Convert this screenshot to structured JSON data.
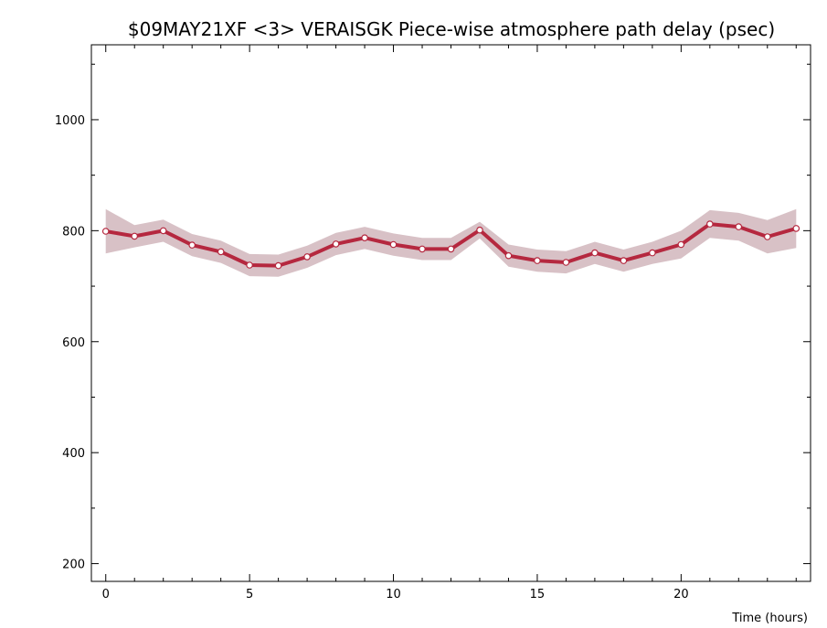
{
  "colors": {
    "line": "#b5283f",
    "band": "#d8c1c6",
    "point_fill": "#ffffff",
    "axis": "#000000"
  },
  "chart_data": {
    "type": "line",
    "title": "$09MAY21XF <3>  VERAISGK  Piece-wise atmosphere path delay (psec)",
    "xlabel": "Time (hours)",
    "ylabel": "",
    "xlim": [
      -0.5,
      24.5
    ],
    "ylim": [
      168,
      1135
    ],
    "x_ticks": [
      0,
      5,
      10,
      15,
      20
    ],
    "y_ticks": [
      200,
      400,
      600,
      800,
      1000
    ],
    "grid": false,
    "series": [
      {
        "x": [
          0,
          1,
          2,
          3,
          4,
          5,
          6,
          7,
          8,
          9,
          10,
          11,
          12,
          13,
          14,
          15,
          16,
          17,
          18,
          19,
          20,
          21,
          22,
          23,
          24
        ],
        "values": [
          799,
          790,
          800,
          774,
          762,
          738,
          737,
          753,
          776,
          787,
          775,
          767,
          767,
          801,
          755,
          746,
          743,
          760,
          746,
          760,
          775,
          812,
          807,
          789,
          804
        ],
        "error": [
          40,
          20,
          20,
          20,
          20,
          20,
          20,
          20,
          20,
          20,
          20,
          20,
          20,
          15,
          20,
          20,
          20,
          20,
          20,
          20,
          25,
          25,
          25,
          30,
          35
        ]
      }
    ]
  }
}
